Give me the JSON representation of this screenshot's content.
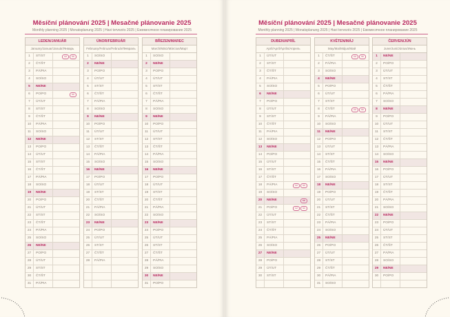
{
  "header": {
    "title": "Měsíční plánování 2025 | Mesačné plánovanie 2025",
    "subtitle": "Monthly planning 2025 | Monatsplanung 2025 | Havi tervezés 2025 | Ежемесячное планирование 2025"
  },
  "colors": {
    "accent": "#b8285f",
    "page": "#fdf9f0",
    "sunday_row": "#f1e6e3"
  },
  "months": [
    {
      "name": "LEDEN/JANUÁR",
      "sub": "January/Januar/Január/Январь",
      "days": [
        "ST/ST",
        "ČT/ŠT",
        "PÁ/PIA",
        "SO/SO",
        "NE/NE",
        "PO/PO",
        "ÚT/UT",
        "ST/ST",
        "ČT/ŠT",
        "PÁ/PIA",
        "SO/SO",
        "NE/NE",
        "PO/PO",
        "ÚT/UT",
        "ST/ST",
        "ČT/ŠT",
        "PÁ/PIA",
        "SO/SO",
        "NE/NE",
        "PO/PO",
        "ÚT/UT",
        "ST/ST",
        "ČT/ŠT",
        "PÁ/PIA",
        "SO/SO",
        "NE/NE",
        "PO/PO",
        "ÚT/UT",
        "ST/ST",
        "ČT/ŠT",
        "PÁ/PIA"
      ],
      "holidays": {
        "1": [
          "CZ",
          "SK"
        ],
        "6": [
          "SK"
        ]
      }
    },
    {
      "name": "ÚNOR/FEBRUÁR",
      "sub": "February/Februar/Február/Февраль",
      "days": [
        "SO/SO",
        "NE/NE",
        "PO/PO",
        "ÚT/UT",
        "ST/ST",
        "ČT/ŠT",
        "PÁ/PIA",
        "SO/SO",
        "NE/NE",
        "PO/PO",
        "ÚT/UT",
        "ST/ST",
        "ČT/ŠT",
        "PÁ/PIA",
        "SO/SO",
        "NE/NE",
        "PO/PO",
        "ÚT/UT",
        "ST/ST",
        "ČT/ŠT",
        "PÁ/PIA",
        "SO/SO",
        "NE/NE",
        "PO/PO",
        "ÚT/UT",
        "ST/ST",
        "ČT/ŠT",
        "PÁ/PIA"
      ],
      "holidays": {}
    },
    {
      "name": "BŘEZEN/MAREC",
      "sub": "March/März/Március/Март",
      "days": [
        "SO/SO",
        "NE/NE",
        "PO/PO",
        "ÚT/UT",
        "ST/ST",
        "ČT/ŠT",
        "PÁ/PIA",
        "SO/SO",
        "NE/NE",
        "PO/PO",
        "ÚT/UT",
        "ST/ST",
        "ČT/ŠT",
        "PÁ/PIA",
        "SO/SO",
        "NE/NE",
        "PO/PO",
        "ÚT/UT",
        "ST/ST",
        "ČT/ŠT",
        "PÁ/PIA",
        "SO/SO",
        "NE/NE",
        "PO/PO",
        "ÚT/UT",
        "ST/ST",
        "ČT/ŠT",
        "PÁ/PIA",
        "SO/SO",
        "NE/NE",
        "PO/PO"
      ],
      "holidays": {}
    },
    {
      "name": "DUBEN/APRÍL",
      "sub": "April/April/Április/Апрель",
      "days": [
        "ÚT/UT",
        "ST/ST",
        "ČT/ŠT",
        "PÁ/PIA",
        "SO/SO",
        "NE/NE",
        "PO/PO",
        "ÚT/UT",
        "ST/ST",
        "ČT/ŠT",
        "PÁ/PIA",
        "SO/SO",
        "NE/NE",
        "PO/PO",
        "ÚT/UT",
        "ST/ST",
        "ČT/ŠT",
        "PÁ/PIA",
        "SO/SO",
        "NE/NE",
        "PO/PO",
        "ÚT/UT",
        "ST/ST",
        "ČT/ŠT",
        "PÁ/PIA",
        "SO/SO",
        "NE/NE",
        "PO/PO",
        "ÚT/UT",
        "ST/ST"
      ],
      "holidays": {
        "18": [
          "CZ",
          "SK"
        ],
        "20": [
          "SK"
        ],
        "21": [
          "CZ",
          "SK"
        ]
      }
    },
    {
      "name": "KVĚTEN/MÁJ",
      "sub": "May/Mai/Május/Май",
      "days": [
        "ČT/ŠT",
        "PÁ/PIA",
        "SO/SO",
        "NE/NE",
        "PO/PO",
        "ÚT/UT",
        "ST/ST",
        "ČT/ŠT",
        "PÁ/PIA",
        "SO/SO",
        "NE/NE",
        "PO/PO",
        "ÚT/UT",
        "ST/ST",
        "ČT/ŠT",
        "PÁ/PIA",
        "SO/SO",
        "NE/NE",
        "PO/PO",
        "ÚT/UT",
        "ST/ST",
        "ČT/ŠT",
        "PÁ/PIA",
        "SO/SO",
        "NE/NE",
        "PO/PO",
        "ÚT/UT",
        "ST/ST",
        "ČT/ŠT",
        "PÁ/PIA",
        "SO/SO"
      ],
      "holidays": {
        "1": [
          "CZ",
          "SK"
        ],
        "8": [
          "CZ",
          "SK"
        ]
      }
    },
    {
      "name": "ČERVEN/JÚN",
      "sub": "June/Juni/Június/Июнь",
      "days": [
        "NE/NE",
        "PO/PO",
        "ÚT/UT",
        "ST/ST",
        "ČT/ŠT",
        "PÁ/PIA",
        "SO/SO",
        "NE/NE",
        "PO/PO",
        "ÚT/UT",
        "ST/ST",
        "ČT/ŠT",
        "PÁ/PIA",
        "SO/SO",
        "NE/NE",
        "PO/PO",
        "ÚT/UT",
        "ST/ST",
        "ČT/ŠT",
        "PÁ/PIA",
        "SO/SO",
        "NE/NE",
        "PO/PO",
        "ÚT/UT",
        "ST/ST",
        "ČT/ŠT",
        "PÁ/PIA",
        "SO/SO",
        "NE/NE",
        "PO/PO"
      ],
      "holidays": {}
    }
  ]
}
